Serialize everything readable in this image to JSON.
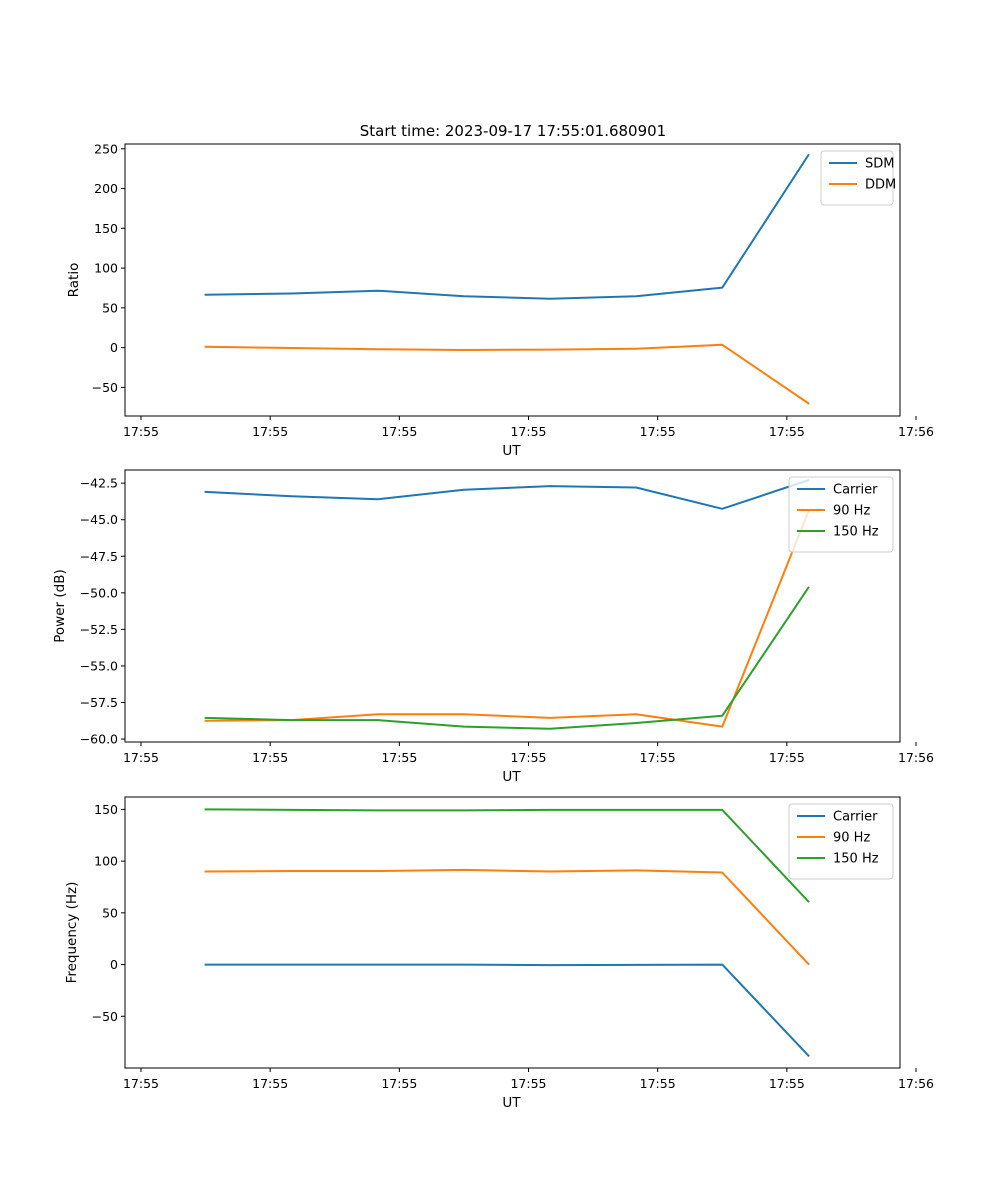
{
  "figure": {
    "title": "Start time: 2023-09-17 17:55:01.680901"
  },
  "chart_data": [
    {
      "type": "line",
      "xlabel": "UT",
      "ylabel": "Ratio",
      "xlim": [
        0,
        6
      ],
      "ylim": [
        -86,
        256
      ],
      "x_tick_positions": [
        0,
        1,
        2,
        3,
        4,
        5,
        6
      ],
      "x_tick_labels": [
        "17:55",
        "17:55",
        "17:55",
        "17:55",
        "17:55",
        "17:55",
        "17:56"
      ],
      "y_ticks": [
        -50,
        0,
        50,
        100,
        150,
        200,
        250
      ],
      "y_tick_labels": [
        "−50",
        "0",
        "50",
        "100",
        "150",
        "200",
        "250"
      ],
      "x": [
        0.5,
        1.1667,
        1.8333,
        2.5,
        3.1667,
        3.8333,
        4.5,
        5.1667
      ],
      "legend": "top-right",
      "series": [
        {
          "name": "SDM",
          "color": "#1f77b4",
          "values": [
            66.5,
            68.0,
            71.5,
            64.5,
            61.5,
            64.5,
            75.5,
            242.0
          ]
        },
        {
          "name": "DDM",
          "color": "#ff7f0e",
          "values": [
            1.0,
            -0.5,
            -2.0,
            -3.0,
            -2.5,
            -1.5,
            3.5,
            -70.0
          ]
        }
      ]
    },
    {
      "type": "line",
      "xlabel": "UT",
      "ylabel": "Power (dB)",
      "xlim": [
        0,
        6
      ],
      "ylim": [
        -60.2,
        -41.6
      ],
      "x_tick_positions": [
        0,
        1,
        2,
        3,
        4,
        5,
        6
      ],
      "x_tick_labels": [
        "17:55",
        "17:55",
        "17:55",
        "17:55",
        "17:55",
        "17:55",
        "17:56"
      ],
      "y_ticks": [
        -60.0,
        -57.5,
        -55.0,
        -52.5,
        -50.0,
        -47.5,
        -45.0,
        -42.5
      ],
      "y_tick_labels": [
        "−60.0",
        "−57.5",
        "−55.0",
        "−52.5",
        "−50.0",
        "−47.5",
        "−45.0",
        "−42.5"
      ],
      "x": [
        0.5,
        1.1667,
        1.8333,
        2.5,
        3.1667,
        3.8333,
        4.5,
        5.1667
      ],
      "legend": "top-right",
      "series": [
        {
          "name": "Carrier",
          "color": "#1f77b4",
          "values": [
            -43.1,
            -43.4,
            -43.6,
            -42.95,
            -42.7,
            -42.8,
            -44.25,
            -42.3
          ]
        },
        {
          "name": "90 Hz",
          "color": "#ff7f0e",
          "values": [
            -58.75,
            -58.7,
            -58.3,
            -58.3,
            -58.55,
            -58.3,
            -59.15,
            -44.45
          ]
        },
        {
          "name": "150 Hz",
          "color": "#2ca02c",
          "values": [
            -58.55,
            -58.7,
            -58.7,
            -59.15,
            -59.3,
            -58.9,
            -58.4,
            -49.65
          ]
        }
      ]
    },
    {
      "type": "line",
      "xlabel": "UT",
      "ylabel": "Frequency (Hz)",
      "xlim": [
        0,
        6
      ],
      "ylim": [
        -100,
        162
      ],
      "x_tick_positions": [
        0,
        1,
        2,
        3,
        4,
        5,
        6
      ],
      "x_tick_labels": [
        "17:55",
        "17:55",
        "17:55",
        "17:55",
        "17:55",
        "17:55",
        "17:56"
      ],
      "y_ticks": [
        -50,
        0,
        50,
        100,
        150
      ],
      "y_tick_labels": [
        "−50",
        "0",
        "50",
        "100",
        "150"
      ],
      "x": [
        0.5,
        1.1667,
        1.8333,
        2.5,
        3.1667,
        3.8333,
        4.5,
        5.1667
      ],
      "legend": "top-right",
      "series": [
        {
          "name": "Carrier",
          "color": "#1f77b4",
          "values": [
            0,
            0,
            0,
            0,
            -0.5,
            -0.3,
            0,
            -88
          ]
        },
        {
          "name": "90 Hz",
          "color": "#ff7f0e",
          "values": [
            90,
            90.5,
            90.5,
            91.5,
            90,
            91,
            89,
            0.5
          ]
        },
        {
          "name": "150 Hz",
          "color": "#2ca02c",
          "values": [
            150,
            149.5,
            149,
            149,
            149.5,
            149.5,
            149.5,
            61
          ]
        }
      ]
    }
  ]
}
